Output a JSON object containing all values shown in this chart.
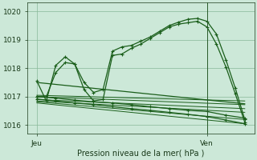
{
  "xlabel": "Pression niveau de la mer( hPa )",
  "bg_color": "#cce8d8",
  "grid_color": "#88b898",
  "line_color": "#1a5e1a",
  "ylim": [
    1015.7,
    1020.3
  ],
  "xlim": [
    0,
    24
  ],
  "xtick_positions": [
    1,
    19
  ],
  "xtick_labels": [
    "Jeu",
    "Ven"
  ],
  "ytick_positions": [
    1016,
    1017,
    1018,
    1019,
    1020
  ],
  "ytick_labels": [
    "1016",
    "1017",
    "1018",
    "1019",
    "1020"
  ],
  "vline_x": 19,
  "series": [
    {
      "x": [
        1,
        2,
        3,
        4,
        5,
        6,
        7,
        8,
        9,
        10,
        11,
        12,
        13,
        14,
        15,
        16,
        17,
        18,
        19,
        20,
        21,
        22,
        23
      ],
      "y": [
        1017.55,
        1016.85,
        1018.1,
        1018.4,
        1018.15,
        1017.5,
        1017.15,
        1017.25,
        1018.6,
        1018.75,
        1018.8,
        1018.95,
        1019.1,
        1019.3,
        1019.5,
        1019.62,
        1019.72,
        1019.75,
        1019.65,
        1019.2,
        1018.3,
        1017.3,
        1016.2
      ],
      "markers": true
    },
    {
      "x": [
        1,
        2,
        3,
        4,
        5,
        6,
        7,
        8,
        9,
        10,
        11,
        12,
        13,
        14,
        15,
        16,
        17,
        18,
        19,
        20,
        21,
        22,
        23
      ],
      "y": [
        1017.0,
        1017.0,
        1017.85,
        1018.2,
        1018.2,
        1017.3,
        1016.85,
        1016.9,
        1018.45,
        1018.5,
        1018.7,
        1018.85,
        1019.05,
        1019.25,
        1019.45,
        1019.55,
        1019.65,
        1019.65,
        1019.45,
        1018.85,
        1018.05,
        1017.1,
        1016.1
      ],
      "markers": true
    },
    {
      "x": [
        1,
        2,
        3,
        4,
        5,
        6,
        7,
        8,
        9,
        10,
        11,
        12,
        13,
        14,
        15,
        16,
        17,
        18,
        19,
        20,
        21,
        22,
        23
      ],
      "y": [
        1017.55,
        1017.3,
        1017.55,
        1017.55,
        1017.4,
        1017.25,
        1017.15,
        1017.1,
        1017.15,
        1017.15,
        1017.12,
        1017.08,
        1017.05,
        1017.02,
        1016.95,
        1016.92,
        1016.9,
        1016.88,
        1016.85,
        1016.82,
        1016.75,
        1016.68,
        1016.6
      ],
      "markers": false
    },
    {
      "x": [
        1,
        23
      ],
      "y": [
        1017.0,
        1016.6
      ],
      "markers": false
    },
    {
      "x": [
        1,
        23
      ],
      "y": [
        1016.9,
        1016.05
      ],
      "markers": false
    },
    {
      "x": [
        1,
        23
      ],
      "y": [
        1016.85,
        1016.0
      ],
      "markers": false
    }
  ],
  "zigzag_lines": [
    {
      "x": [
        1,
        2,
        3,
        4,
        5,
        6,
        7,
        8,
        9,
        10,
        11,
        12,
        13,
        14,
        15,
        16,
        17,
        18,
        19,
        20,
        21,
        22,
        23
      ],
      "y": [
        1017.0,
        1016.85,
        1016.85,
        1016.8,
        1016.75,
        1016.7,
        1016.65,
        1016.62,
        1016.6,
        1016.55,
        1016.5,
        1016.48,
        1016.45,
        1016.42,
        1016.38,
        1016.35,
        1016.32,
        1016.28,
        1016.22,
        1016.18,
        1016.12,
        1016.07,
        1016.02
      ]
    }
  ]
}
